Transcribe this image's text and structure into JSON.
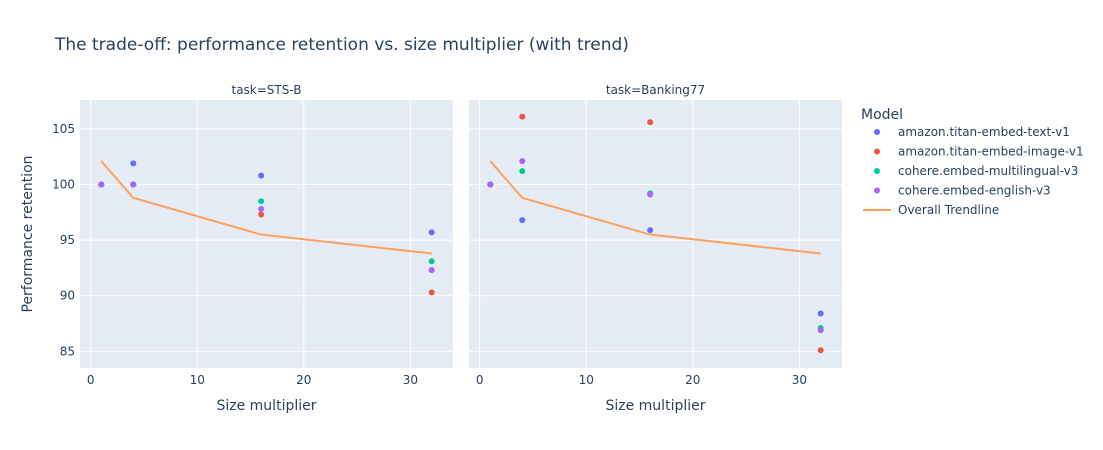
{
  "chart_data": {
    "type": "scatter",
    "title": "The trade-off: performance retention vs. size multiplier (with trend)",
    "xlabel": "Size multiplier",
    "ylabel": "Performance retention",
    "xlim": [
      -1,
      34
    ],
    "ylim": [
      83.5,
      107.6
    ],
    "xticks": [
      0,
      10,
      20,
      30
    ],
    "yticks": [
      85,
      90,
      95,
      100,
      105
    ],
    "grid": true,
    "legend_title": "Model",
    "legend_position": "right",
    "series": [
      {
        "name": "amazon.titan-embed-text-v1",
        "color": "#636efa"
      },
      {
        "name": "amazon.titan-embed-image-v1",
        "color": "#ef553b"
      },
      {
        "name": "cohere.embed-multilingual-v3",
        "color": "#00cc96"
      },
      {
        "name": "cohere.embed-english-v3",
        "color": "#ab63fa"
      }
    ],
    "trendline": {
      "name": "Overall Trendline",
      "color": "#ffa15a"
    },
    "facets": [
      {
        "title": "task=STS-B",
        "points": {
          "amazon.titan-embed-text-v1": [
            [
              1,
              100
            ],
            [
              4,
              101.9
            ],
            [
              16,
              100.8
            ],
            [
              32,
              95.7
            ]
          ],
          "amazon.titan-embed-image-v1": [
            [
              1,
              100
            ],
            [
              4,
              100
            ],
            [
              16,
              97.3
            ],
            [
              32,
              90.3
            ]
          ],
          "cohere.embed-multilingual-v3": [
            [
              1,
              100
            ],
            [
              4,
              100
            ],
            [
              16,
              98.5
            ],
            [
              32,
              93.1
            ]
          ],
          "cohere.embed-english-v3": [
            [
              1,
              100
            ],
            [
              4,
              100
            ],
            [
              16,
              97.8
            ],
            [
              32,
              92.3
            ]
          ]
        },
        "trend": [
          [
            1,
            102.1
          ],
          [
            4,
            98.8
          ],
          [
            16,
            95.5
          ],
          [
            32,
            93.8
          ]
        ]
      },
      {
        "title": "task=Banking77",
        "points": {
          "amazon.titan-embed-text-v1": [
            [
              1,
              100
            ],
            [
              4,
              96.8
            ],
            [
              16,
              95.9
            ],
            [
              32,
              88.4
            ]
          ],
          "amazon.titan-embed-image-v1": [
            [
              1,
              100
            ],
            [
              4,
              106.1
            ],
            [
              16,
              105.6
            ],
            [
              32,
              85.1
            ]
          ],
          "cohere.embed-multilingual-v3": [
            [
              1,
              100
            ],
            [
              4,
              101.2
            ],
            [
              16,
              99.2
            ],
            [
              32,
              87.1
            ]
          ],
          "cohere.embed-english-v3": [
            [
              1,
              100
            ],
            [
              4,
              102.1
            ],
            [
              16,
              99.1
            ],
            [
              32,
              86.9
            ]
          ]
        },
        "trend": [
          [
            1,
            102.1
          ],
          [
            4,
            98.8
          ],
          [
            16,
            95.5
          ],
          [
            32,
            93.8
          ]
        ]
      }
    ]
  }
}
